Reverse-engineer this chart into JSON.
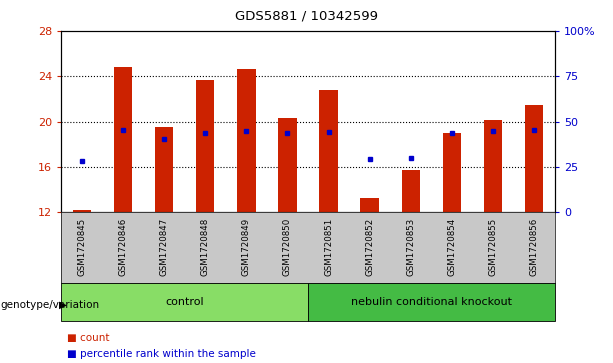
{
  "title": "GDS5881 / 10342599",
  "samples": [
    "GSM1720845",
    "GSM1720846",
    "GSM1720847",
    "GSM1720848",
    "GSM1720849",
    "GSM1720850",
    "GSM1720851",
    "GSM1720852",
    "GSM1720853",
    "GSM1720854",
    "GSM1720855",
    "GSM1720856"
  ],
  "bar_heights": [
    12.2,
    24.8,
    19.5,
    23.7,
    24.6,
    20.3,
    22.8,
    13.3,
    15.7,
    19.0,
    20.1,
    21.5
  ],
  "percentile_left_vals": [
    16.5,
    19.3,
    18.5,
    19.0,
    19.2,
    19.0,
    19.1,
    16.7,
    16.8,
    19.0,
    19.2,
    19.3
  ],
  "bar_color": "#cc2200",
  "dot_color": "#0000cc",
  "ylim_left": [
    12,
    28
  ],
  "yticks_left": [
    12,
    16,
    20,
    24,
    28
  ],
  "ylim_right": [
    0,
    100
  ],
  "yticks_right": [
    0,
    25,
    50,
    75,
    100
  ],
  "yticklabels_right": [
    "0",
    "25",
    "50",
    "75",
    "100%"
  ],
  "groups": [
    {
      "label": "control",
      "start": 0,
      "end": 5,
      "color": "#88dd66"
    },
    {
      "label": "nebulin conditional knockout",
      "start": 6,
      "end": 11,
      "color": "#44bb44"
    }
  ],
  "group_label": "genotype/variation",
  "legend_count_label": "count",
  "legend_pct_label": "percentile rank within the sample",
  "tick_area_bg": "#c8c8c8",
  "bar_width": 0.45,
  "gridline_color": "#000000"
}
